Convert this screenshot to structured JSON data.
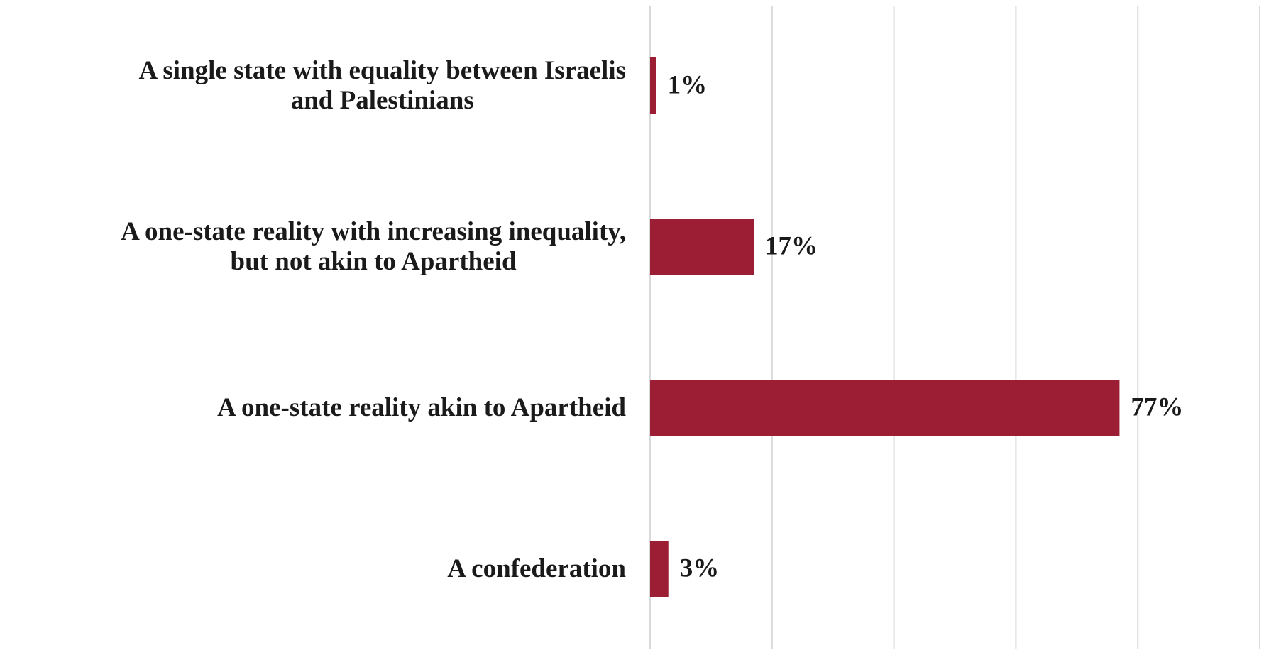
{
  "chart_data": {
    "type": "bar",
    "orientation": "horizontal",
    "categories": [
      "A single state with equality between Israelis\nand Palestinians",
      "A one-state reality with increasing inequality,\nbut not akin to Apartheid",
      "A one-state reality akin to Apartheid",
      "A confederation"
    ],
    "values": [
      1,
      17,
      77,
      3
    ],
    "value_labels": [
      "1%",
      "17%",
      "77%",
      "3%"
    ],
    "color": "#9b1e34",
    "xlim": [
      0,
      100
    ],
    "xticks": [
      0,
      20,
      40,
      60,
      80,
      100
    ],
    "grid": true
  }
}
